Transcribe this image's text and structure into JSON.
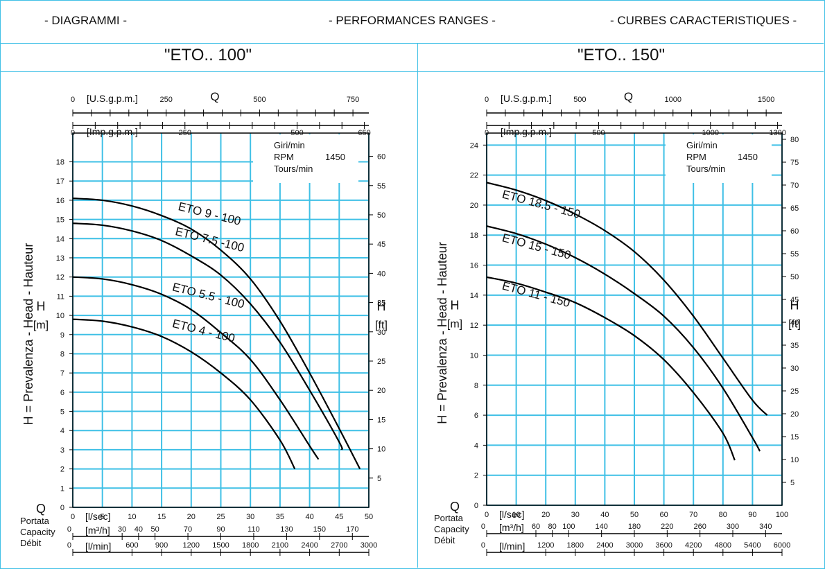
{
  "header": {
    "left": "- DIAGRAMMI -",
    "center": "- PERFORMANCES RANGES -",
    "right": "- CURBES CARACTERISTIQUES -"
  },
  "colors": {
    "grid": "#3fc0e6",
    "curve": "#000000",
    "text": "#111111"
  },
  "chart_data": [
    {
      "type": "line",
      "title": "\"ETO.. 100\"",
      "left_axis_label": "H = Prevalenza - Head - Hauteur",
      "h_label": "H",
      "h_unit": "[m]",
      "right_label": "H",
      "right_unit": "[ft]",
      "q_label": "Q",
      "flow_labels": [
        "Portata",
        "Capacity",
        "Débit"
      ],
      "rpm_box": [
        "Giri/min",
        "RPM",
        "Tours/min"
      ],
      "rpm_value": "1450",
      "x": {
        "label": "[l/sec]",
        "ticks": [
          "0",
          "5",
          "10",
          "15",
          "20",
          "25",
          "30",
          "35",
          "40",
          "45",
          "50"
        ],
        "min": 0,
        "max": 50,
        "grid": [
          0,
          5,
          10,
          15,
          20,
          25,
          30,
          35,
          40,
          45,
          50
        ]
      },
      "y": {
        "ticks": [
          "0",
          "1",
          "2",
          "3",
          "4",
          "5",
          "6",
          "7",
          "8",
          "9",
          "10",
          "11",
          "12",
          "13",
          "14",
          "15",
          "16",
          "17",
          "18"
        ],
        "min": 0,
        "max": 19.5
      },
      "right_axis": {
        "ticks": [
          "5",
          "10",
          "15",
          "20",
          "25",
          "30",
          "35",
          "40",
          "45",
          "50",
          "55",
          "60"
        ],
        "per_unit": 0.3048
      },
      "top_axes": [
        {
          "unit": "[U.S.g.p.m.]",
          "labels": [
            "0",
            "250",
            "500",
            "750"
          ],
          "values": [
            0,
            250,
            500,
            750
          ],
          "factor": 0.06309
        },
        {
          "unit": "[Imp.g.p.m.]",
          "labels": [
            "0",
            "250",
            "500",
            "650"
          ],
          "values": [
            0,
            250,
            500,
            650
          ],
          "factor": 0.07577
        }
      ],
      "bottom_axes": [
        {
          "unit": "[m³/h]",
          "labels": [
            "0",
            "30",
            "40",
            "50",
            "70",
            "90",
            "110",
            "130",
            "150",
            "170"
          ],
          "values": [
            0,
            30,
            40,
            50,
            70,
            90,
            110,
            130,
            150,
            170
          ],
          "factor": 0.27778
        },
        {
          "unit": "[l/min]",
          "labels": [
            "0",
            "600",
            "900",
            "1200",
            "1500",
            "1800",
            "2100",
            "2400",
            "2700",
            "3000"
          ],
          "values": [
            0,
            600,
            900,
            1200,
            1500,
            1800,
            2100,
            2400,
            2700,
            3000
          ],
          "factor": 0.016667
        }
      ],
      "series": [
        {
          "name": "ETO 9 - 100",
          "label_at": [
            9.5,
            15.5
          ],
          "angle": 14,
          "points": [
            [
              0,
              16.1
            ],
            [
              5,
              16.0
            ],
            [
              10,
              15.7
            ],
            [
              15,
              15.2
            ],
            [
              20,
              14.5
            ],
            [
              25,
              13.4
            ],
            [
              30,
              11.9
            ],
            [
              35,
              9.7
            ],
            [
              40,
              7.0
            ],
            [
              45,
              4.1
            ],
            [
              48.5,
              2.0
            ]
          ]
        },
        {
          "name": "ETO 7.5 -100",
          "label_at": [
            9.0,
            14.2
          ],
          "angle": 14,
          "points": [
            [
              0,
              14.8
            ],
            [
              5,
              14.7
            ],
            [
              10,
              14.4
            ],
            [
              15,
              13.9
            ],
            [
              20,
              13.1
            ],
            [
              25,
              12.1
            ],
            [
              30,
              10.6
            ],
            [
              35,
              8.6
            ],
            [
              40,
              6.1
            ],
            [
              45,
              3.4
            ],
            [
              45.4,
              3.0
            ]
          ]
        },
        {
          "name": "ETO 5.5 - 100",
          "label_at": [
            8.5,
            11.3
          ],
          "angle": 14,
          "points": [
            [
              0,
              12.0
            ],
            [
              5,
              11.9
            ],
            [
              10,
              11.6
            ],
            [
              15,
              11.1
            ],
            [
              20,
              10.3
            ],
            [
              25,
              9.1
            ],
            [
              30,
              7.7
            ],
            [
              35,
              5.6
            ],
            [
              40,
              3.2
            ],
            [
              41.5,
              2.5
            ]
          ]
        },
        {
          "name": "ETO 4 - 100",
          "label_at": [
            8.5,
            9.4
          ],
          "angle": 14,
          "points": [
            [
              0,
              9.8
            ],
            [
              5,
              9.7
            ],
            [
              10,
              9.4
            ],
            [
              15,
              8.9
            ],
            [
              20,
              8.1
            ],
            [
              25,
              7.0
            ],
            [
              30,
              5.6
            ],
            [
              35,
              3.5
            ],
            [
              37.5,
              2.0
            ]
          ]
        }
      ]
    },
    {
      "type": "line",
      "title": "\"ETO.. 150\"",
      "left_axis_label": "H = Prevalenza - Head - Hauteur",
      "h_label": "H",
      "h_unit": "[m]",
      "right_label": "H",
      "right_unit": "[ft]",
      "q_label": "Q",
      "flow_labels": [
        "Portata",
        "Capacity",
        "Débit"
      ],
      "rpm_box": [
        "Giri/min",
        "RPM",
        "Tours/min"
      ],
      "rpm_value": "1450",
      "x": {
        "label": "[l/sec]",
        "ticks": [
          "0",
          "10",
          "20",
          "30",
          "40",
          "50",
          "60",
          "70",
          "80",
          "90",
          "100"
        ],
        "min": 0,
        "max": 100,
        "grid": [
          0,
          10,
          20,
          30,
          40,
          50,
          60,
          70,
          80,
          90,
          100
        ]
      },
      "y": {
        "ticks": [
          "0",
          "2",
          "4",
          "6",
          "8",
          "10",
          "12",
          "14",
          "16",
          "18",
          "20",
          "22",
          "24"
        ],
        "min": 0,
        "max": 24.8
      },
      "right_axis": {
        "ticks": [
          "5",
          "10",
          "15",
          "20",
          "25",
          "30",
          "35",
          "40",
          "45",
          "50",
          "55",
          "60",
          "65",
          "70",
          "75",
          "80"
        ],
        "per_unit": 0.3048
      },
      "top_axes": [
        {
          "unit": "[U.S.g.p.m.]",
          "labels": [
            "0",
            "500",
            "1000",
            "1500"
          ],
          "values": [
            0,
            500,
            1000,
            1500
          ],
          "factor": 0.06309
        },
        {
          "unit": "[Imp.g.p.m.]",
          "labels": [
            "0",
            "500",
            "1000",
            "1300"
          ],
          "values": [
            0,
            500,
            1000,
            1300
          ],
          "factor": 0.07577
        }
      ],
      "bottom_axes": [
        {
          "unit": "[m³/h]",
          "labels": [
            "0",
            "60",
            "80",
            "100",
            "140",
            "180",
            "220",
            "260",
            "300",
            "340"
          ],
          "values": [
            0,
            60,
            80,
            100,
            140,
            180,
            220,
            260,
            300,
            340
          ],
          "factor": 0.27778
        },
        {
          "unit": "[l/min]",
          "labels": [
            "0",
            "1200",
            "1800",
            "2400",
            "3000",
            "3600",
            "4200",
            "4800",
            "5400",
            "6000"
          ],
          "values": [
            0,
            1200,
            1800,
            2400,
            3000,
            3600,
            4200,
            4800,
            5400,
            6000
          ],
          "factor": 0.016667
        }
      ],
      "series": [
        {
          "name": "ETO 18.5 - 150",
          "label_at": [
            5,
            20.5
          ],
          "angle": 15,
          "points": [
            [
              0,
              21.5
            ],
            [
              10,
              21.0
            ],
            [
              20,
              20.3
            ],
            [
              30,
              19.4
            ],
            [
              40,
              18.3
            ],
            [
              50,
              16.9
            ],
            [
              60,
              15.0
            ],
            [
              70,
              12.6
            ],
            [
              80,
              9.8
            ],
            [
              90,
              7.0
            ],
            [
              95,
              6.0
            ]
          ]
        },
        {
          "name": "ETO 15 - 150",
          "label_at": [
            5,
            17.6
          ],
          "angle": 15,
          "points": [
            [
              0,
              18.6
            ],
            [
              10,
              18.1
            ],
            [
              20,
              17.4
            ],
            [
              30,
              16.5
            ],
            [
              40,
              15.4
            ],
            [
              50,
              14.1
            ],
            [
              60,
              12.6
            ],
            [
              70,
              10.5
            ],
            [
              80,
              7.8
            ],
            [
              90,
              4.5
            ],
            [
              92.5,
              3.6
            ]
          ]
        },
        {
          "name": "ETO 11 - 150",
          "label_at": [
            5,
            14.4
          ],
          "angle": 15,
          "points": [
            [
              0,
              15.2
            ],
            [
              10,
              14.8
            ],
            [
              20,
              14.2
            ],
            [
              30,
              13.5
            ],
            [
              40,
              12.5
            ],
            [
              50,
              11.3
            ],
            [
              60,
              9.7
            ],
            [
              70,
              7.5
            ],
            [
              80,
              4.8
            ],
            [
              84,
              3.0
            ]
          ]
        }
      ]
    }
  ]
}
